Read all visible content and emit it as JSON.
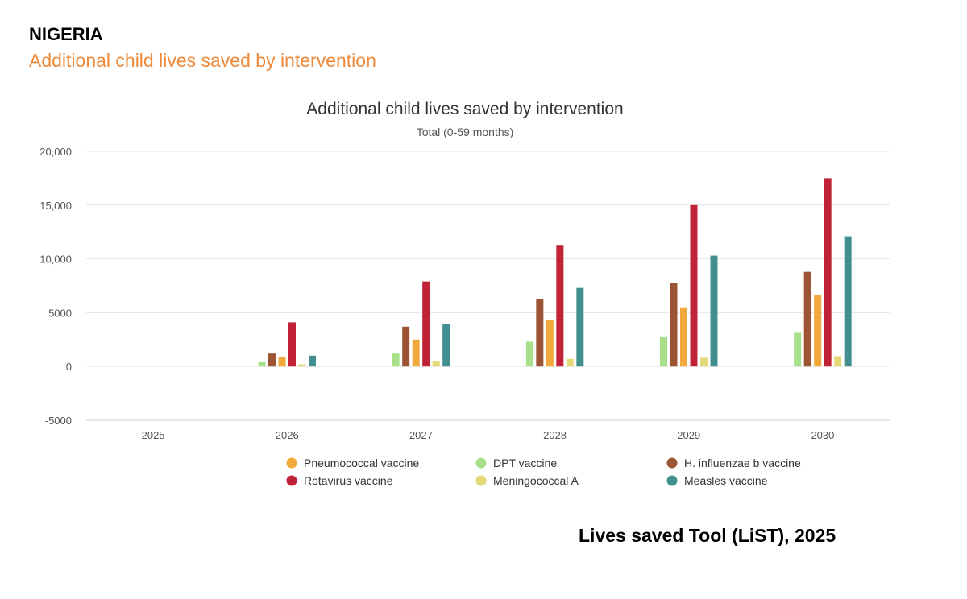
{
  "page": {
    "country": "NIGERIA",
    "subtitle": "Additional child lives saved by intervention",
    "credit": "Lives saved Tool (LiST), 2025"
  },
  "chart_data": {
    "type": "bar",
    "title": "Additional child lives saved by intervention",
    "subtitle": "Total (0-59 months)",
    "xlabel": "",
    "ylabel": "",
    "ylim": [
      -5000,
      20000
    ],
    "yticks": [
      -5000,
      0,
      5000,
      10000,
      15000,
      20000
    ],
    "ytick_labels": [
      "-5000",
      "0",
      "5000",
      "10,000",
      "15,000",
      "20,000"
    ],
    "grid": true,
    "categories": [
      "2025",
      "2026",
      "2027",
      "2028",
      "2029",
      "2030"
    ],
    "series": [
      {
        "name": "DPT vaccine",
        "color": "#a8e08a",
        "values": [
          0,
          400,
          1200,
          2300,
          2800,
          3200
        ]
      },
      {
        "name": "H. influenzae b vaccine",
        "color": "#9c5434",
        "values": [
          0,
          1200,
          3700,
          6300,
          7800,
          8800
        ]
      },
      {
        "name": "Pneumococcal vaccine",
        "color": "#f2a93b",
        "values": [
          0,
          850,
          2500,
          4300,
          5500,
          6600
        ]
      },
      {
        "name": "Rotavirus vaccine",
        "color": "#c22237",
        "values": [
          0,
          4100,
          7900,
          11300,
          15000,
          17500
        ]
      },
      {
        "name": "Meningococcal A",
        "color": "#e3d978",
        "values": [
          0,
          200,
          500,
          700,
          800,
          950
        ]
      },
      {
        "name": "Measles vaccine",
        "color": "#438f8f",
        "values": [
          0,
          1000,
          3950,
          7300,
          10300,
          12100
        ]
      }
    ],
    "legend": {
      "position": "bottom",
      "order": [
        "Pneumococcal vaccine",
        "DPT vaccine",
        "H. influenzae b vaccine",
        "Rotavirus vaccine",
        "Meningococcal A",
        "Measles vaccine"
      ]
    }
  }
}
